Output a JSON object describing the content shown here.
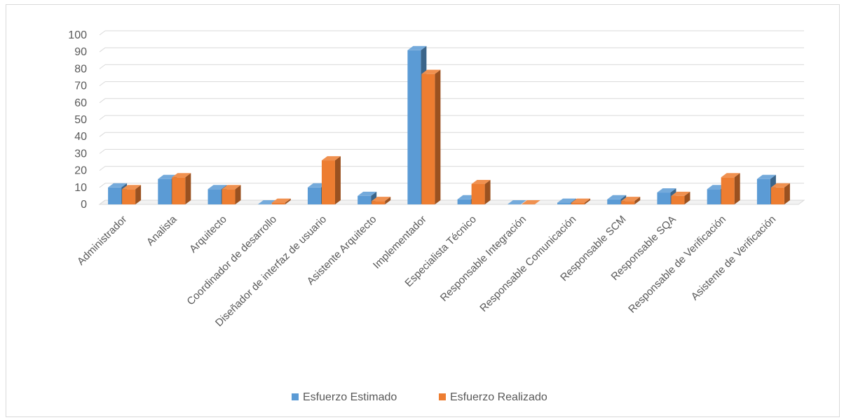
{
  "chart_data": {
    "type": "bar",
    "style": "3d-clustered-column",
    "title": "",
    "xlabel": "",
    "ylabel": "",
    "ylim": [
      0,
      100
    ],
    "yticks": [
      0,
      10,
      20,
      30,
      40,
      50,
      60,
      70,
      80,
      90,
      100
    ],
    "grid": true,
    "legend_position": "bottom",
    "categories": [
      "Administrador",
      "Analista",
      "Arquitecto",
      "Coordinador de desarrollo",
      "Diseñador de interfaz de usuario",
      "Asistente Arquitecto",
      "Implementador",
      "Especialista Técnico",
      "Responsable Integración",
      "Responsable Comunicación",
      "Responsable  SCM",
      "Responsable SQA",
      "Responsable de Verificación",
      "Asistente de Verificación"
    ],
    "series": [
      {
        "name": "Esfuerzo Estimado",
        "color": "#5b9bd5",
        "values": [
          10,
          15,
          9,
          0,
          10,
          5,
          91,
          3,
          0,
          1,
          3,
          7,
          9,
          15
        ]
      },
      {
        "name": "Esfuerzo Realizado",
        "color": "#ed7d31",
        "values": [
          9,
          16,
          9,
          1,
          26,
          2,
          77,
          12,
          0,
          1,
          2,
          5,
          16,
          10
        ]
      }
    ]
  }
}
